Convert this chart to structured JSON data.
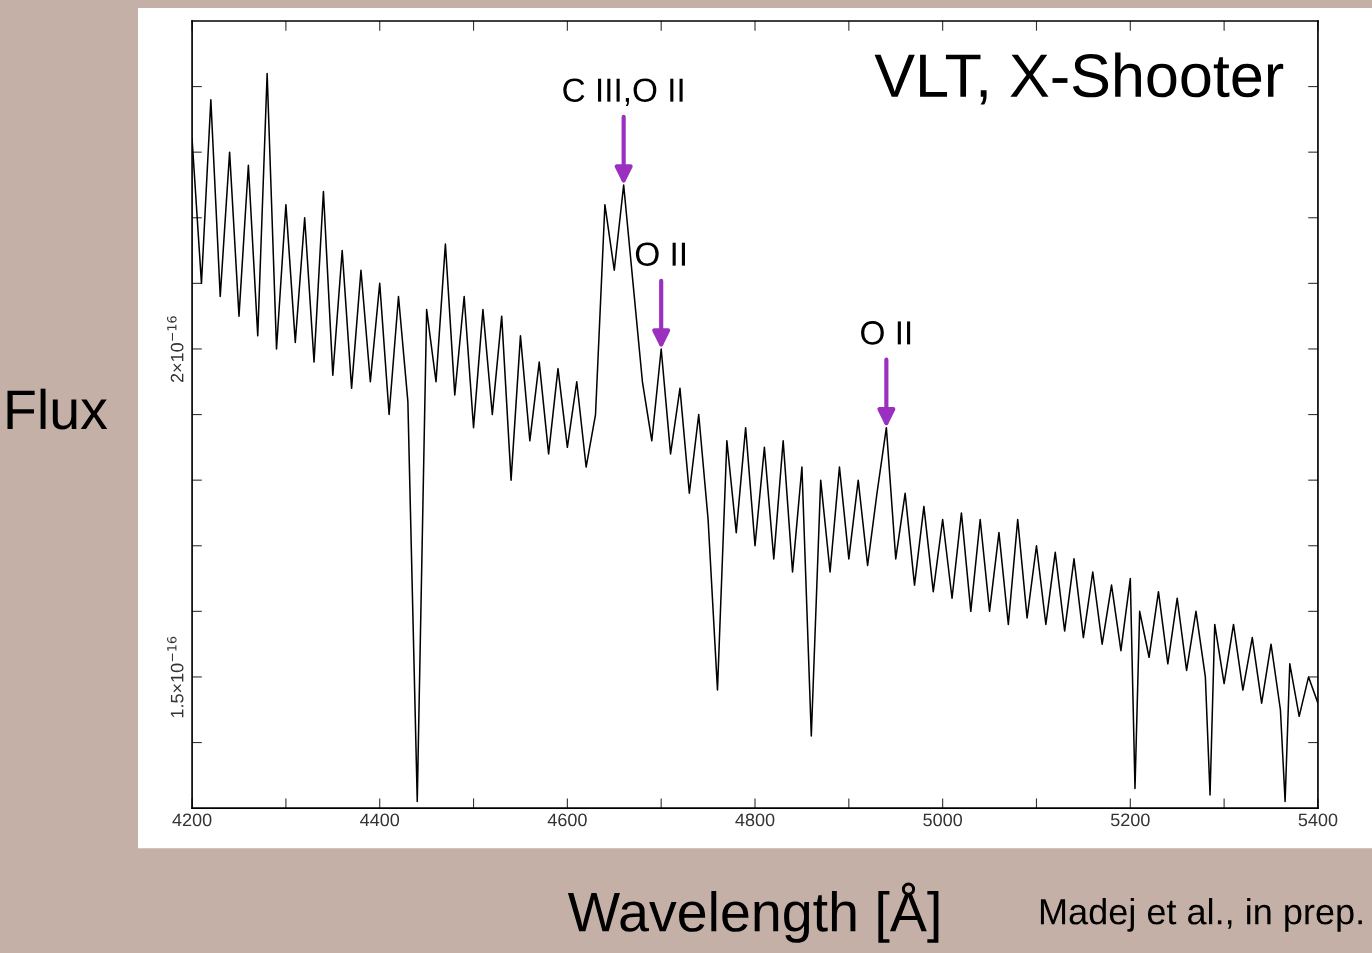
{
  "chart_data": {
    "type": "line",
    "xlabel": "Wavelength [Å]",
    "ylabel": "Flux",
    "xlim": [
      4200,
      5400
    ],
    "xticks": [
      4200,
      {
        "value": 4300,
        "label": null
      },
      4400,
      {
        "value": 4500,
        "label": null
      },
      4600,
      {
        "value": 4700,
        "label": null
      },
      4800,
      {
        "value": 4900,
        "label": null
      },
      5000,
      {
        "value": 5100,
        "label": null
      },
      5200,
      {
        "value": 5300,
        "label": null
      },
      5400
    ],
    "ylim": [
      1.3e-16,
      2.5e-16
    ],
    "yticks": [
      {
        "value": 1.4e-16,
        "label": null
      },
      {
        "value": 1.5e-16,
        "label": "1.5×10$^{−16}$"
      },
      {
        "value": 1.6e-16,
        "label": null
      },
      {
        "value": 1.7e-16,
        "label": null
      },
      {
        "value": 1.8e-16,
        "label": null
      },
      {
        "value": 1.9e-16,
        "label": null
      },
      {
        "value": 2e-16,
        "label": "2×10$^{−16}$"
      },
      {
        "value": 2.1e-16,
        "label": null
      },
      {
        "value": 2.2e-16,
        "label": null
      },
      {
        "value": 2.3e-16,
        "label": null
      },
      {
        "value": 2.4e-16,
        "label": null
      }
    ],
    "grid": false,
    "legend": false,
    "marker": "none",
    "line_style": "solid",
    "annotations": [
      {
        "text": "C III,O II",
        "x": 4660,
        "y": 2.25e-16
      },
      {
        "text": "O II",
        "x": 4700,
        "y": 2e-16
      },
      {
        "text": "O II",
        "x": 4940,
        "y": 1.88e-16
      },
      "VLT, X-Shooter",
      "Madej et al., in prep."
    ],
    "series": [
      {
        "color": "#000000",
        "x": [
          4200,
          4210,
          4220,
          4230,
          4240,
          4250,
          4260,
          4270,
          4280,
          4290,
          4300,
          4310,
          4320,
          4330,
          4340,
          4350,
          4360,
          4370,
          4380,
          4390,
          4400,
          4410,
          4420,
          4430,
          4440,
          4450,
          4460,
          4470,
          4480,
          4490,
          4500,
          4510,
          4520,
          4530,
          4540,
          4550,
          4560,
          4570,
          4580,
          4590,
          4600,
          4610,
          4620,
          4630,
          4640,
          4650,
          4660,
          4670,
          4680,
          4690,
          4700,
          4710,
          4720,
          4730,
          4740,
          4750,
          4760,
          4770,
          4780,
          4790,
          4800,
          4810,
          4820,
          4830,
          4840,
          4850,
          4860,
          4870,
          4880,
          4890,
          4900,
          4910,
          4920,
          4930,
          4940,
          4950,
          4960,
          4970,
          4980,
          4990,
          5000,
          5010,
          5020,
          5030,
          5040,
          5050,
          5060,
          5070,
          5080,
          5090,
          5100,
          5110,
          5120,
          5130,
          5140,
          5150,
          5160,
          5170,
          5180,
          5190,
          5200,
          5205,
          5210,
          5220,
          5230,
          5240,
          5250,
          5260,
          5270,
          5280,
          5285,
          5290,
          5300,
          5310,
          5320,
          5330,
          5340,
          5350,
          5360,
          5365,
          5370,
          5380,
          5390,
          5400
        ],
        "values": [
          2.32e-16,
          2.1e-16,
          2.38e-16,
          2.08e-16,
          2.3e-16,
          2.05e-16,
          2.28e-16,
          2.02e-16,
          2.42e-16,
          2e-16,
          2.22e-16,
          2.01e-16,
          2.2e-16,
          1.98e-16,
          2.24e-16,
          1.96e-16,
          2.15e-16,
          1.94e-16,
          2.12e-16,
          1.95e-16,
          2.1e-16,
          1.9e-16,
          2.08e-16,
          1.92e-16,
          1.31e-16,
          2.06e-16,
          1.95e-16,
          2.16e-16,
          1.93e-16,
          2.08e-16,
          1.88e-16,
          2.06e-16,
          1.9e-16,
          2.05e-16,
          1.8e-16,
          2.02e-16,
          1.86e-16,
          1.98e-16,
          1.84e-16,
          1.97e-16,
          1.85e-16,
          1.95e-16,
          1.82e-16,
          1.9e-16,
          2.22e-16,
          2.12e-16,
          2.25e-16,
          2.1e-16,
          1.95e-16,
          1.86e-16,
          2e-16,
          1.84e-16,
          1.94e-16,
          1.78e-16,
          1.9e-16,
          1.74e-16,
          1.48e-16,
          1.86e-16,
          1.72e-16,
          1.88e-16,
          1.7e-16,
          1.85e-16,
          1.68e-16,
          1.86e-16,
          1.66e-16,
          1.82e-16,
          1.41e-16,
          1.8e-16,
          1.66e-16,
          1.82e-16,
          1.68e-16,
          1.8e-16,
          1.67e-16,
          1.78e-16,
          1.88e-16,
          1.68e-16,
          1.78e-16,
          1.64e-16,
          1.76e-16,
          1.63e-16,
          1.74e-16,
          1.62e-16,
          1.75e-16,
          1.6e-16,
          1.74e-16,
          1.6e-16,
          1.72e-16,
          1.58e-16,
          1.74e-16,
          1.59e-16,
          1.7e-16,
          1.58e-16,
          1.69e-16,
          1.57e-16,
          1.68e-16,
          1.56e-16,
          1.66e-16,
          1.55e-16,
          1.64e-16,
          1.54e-16,
          1.65e-16,
          1.33e-16,
          1.6e-16,
          1.53e-16,
          1.63e-16,
          1.52e-16,
          1.62e-16,
          1.51e-16,
          1.6e-16,
          1.5e-16,
          1.32e-16,
          1.58e-16,
          1.49e-16,
          1.58e-16,
          1.48e-16,
          1.56e-16,
          1.46e-16,
          1.55e-16,
          1.45e-16,
          1.31e-16,
          1.52e-16,
          1.44e-16,
          1.5e-16,
          1.46e-16
        ]
      }
    ]
  }
}
